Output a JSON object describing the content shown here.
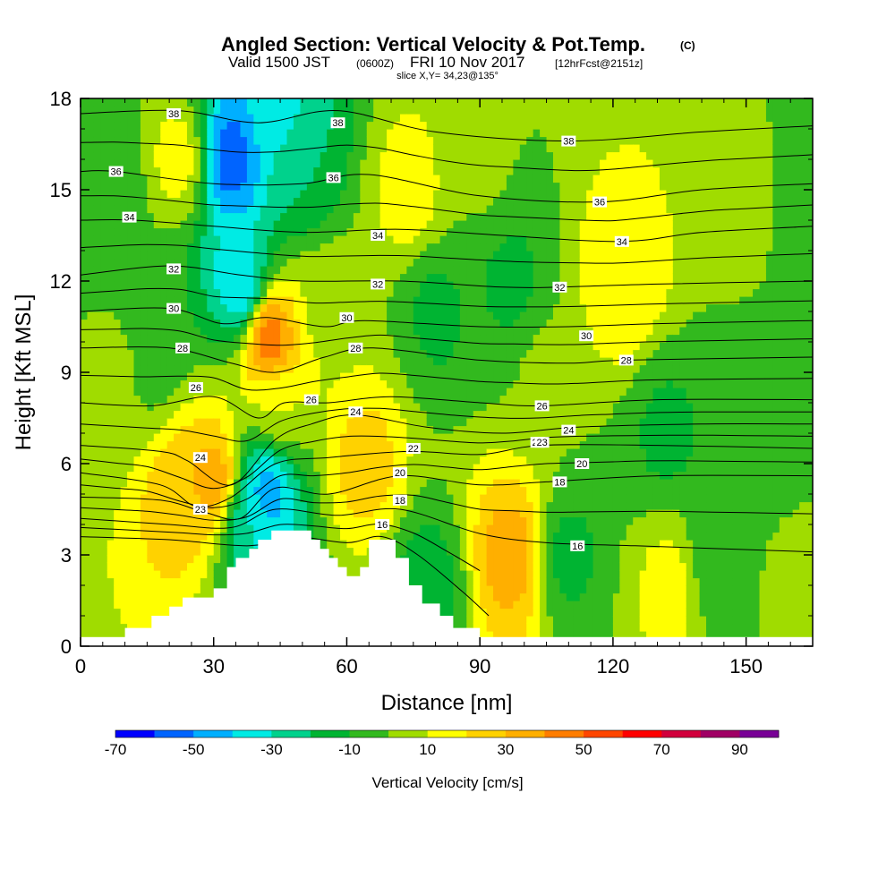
{
  "chart_data": {
    "type": "heatmap",
    "title": "Angled Section: Vertical Velocity & Pot.Temp.",
    "title_unit": "(C)",
    "subtitle_valid": "Valid 1500 JST",
    "subtitle_utc": "(0600Z)",
    "subtitle_date": "FRI 10 Nov 2017",
    "subtitle_fcst": "[12hrFcst@2151z]",
    "slice": "slice X,Y= 34,23@135°",
    "xlabel": "Distance [nm]",
    "ylabel": "Height [Kft MSL]",
    "xlim": [
      0,
      165
    ],
    "ylim": [
      0,
      18
    ],
    "x_ticks": [
      0,
      30,
      60,
      90,
      120,
      150
    ],
    "y_ticks": [
      0,
      3,
      6,
      9,
      12,
      15,
      18
    ],
    "colorbar": {
      "label": "Vertical Velocity [cm/s]",
      "tick_labels": [
        "-70",
        "-50",
        "-30",
        "-10",
        "10",
        "30",
        "50",
        "70",
        "90"
      ],
      "tick_values": [
        -70,
        -50,
        -30,
        -10,
        10,
        30,
        50,
        70,
        90
      ],
      "range": [
        -70,
        100
      ],
      "bin_width": 10,
      "colors": [
        "#0000ff",
        "#0064ff",
        "#00afff",
        "#00ebe4",
        "#00d28c",
        "#00b432",
        "#32b91e",
        "#a0dc00",
        "#ffff00",
        "#ffd200",
        "#ffaf00",
        "#ff7d00",
        "#ff4600",
        "#ff0000",
        "#d2003c",
        "#a00064",
        "#780096"
      ]
    },
    "w_field_centers": [
      {
        "x": 7,
        "z": 15,
        "w": -8
      },
      {
        "x": 8,
        "z": 9,
        "w": 3
      },
      {
        "x": 22,
        "z": 16,
        "w": 14
      },
      {
        "x": 23,
        "z": 5,
        "w": 30
      },
      {
        "x": 30,
        "z": 5.5,
        "w": 35
      },
      {
        "x": 17,
        "z": 10,
        "w": -10
      },
      {
        "x": 34,
        "z": 16,
        "w": -55
      },
      {
        "x": 36,
        "z": 12,
        "w": -38
      },
      {
        "x": 45,
        "z": 17.5,
        "w": -35
      },
      {
        "x": 50,
        "z": 16,
        "w": -20
      },
      {
        "x": 43,
        "z": 10,
        "w": 45
      },
      {
        "x": 42,
        "z": 5,
        "w": -45
      },
      {
        "x": 38,
        "z": 4,
        "w": -30
      },
      {
        "x": 45,
        "z": 8,
        "w": 10
      },
      {
        "x": 64,
        "z": 6,
        "w": 25
      },
      {
        "x": 55,
        "z": 11,
        "w": 8
      },
      {
        "x": 74,
        "z": 15,
        "w": 15
      },
      {
        "x": 80,
        "z": 11,
        "w": -12
      },
      {
        "x": 78,
        "z": 2,
        "w": -15
      },
      {
        "x": 90,
        "z": 16,
        "w": 2
      },
      {
        "x": 97,
        "z": 12,
        "w": -12
      },
      {
        "x": 97,
        "z": 3,
        "w": 35
      },
      {
        "x": 105,
        "z": 9,
        "w": 2
      },
      {
        "x": 110,
        "z": 3,
        "w": -12
      },
      {
        "x": 122,
        "z": 12,
        "w": 20
      },
      {
        "x": 132,
        "z": 7,
        "w": -12
      },
      {
        "x": 133,
        "z": 2,
        "w": 14
      },
      {
        "x": 143,
        "z": 3,
        "w": -10
      },
      {
        "x": 150,
        "z": 15,
        "w": 6
      },
      {
        "x": 155,
        "z": 7,
        "w": -8
      },
      {
        "x": 162,
        "z": 15,
        "w": -8
      },
      {
        "x": 162,
        "z": 2,
        "w": 5
      }
    ],
    "terrain": [
      [
        10,
        0.6
      ],
      [
        16,
        0.6
      ],
      [
        16,
        1.0
      ],
      [
        20,
        1.0
      ],
      [
        20,
        1.3
      ],
      [
        23,
        1.3
      ],
      [
        23,
        1.6
      ],
      [
        30,
        1.6
      ],
      [
        30,
        1.9
      ],
      [
        33,
        1.9
      ],
      [
        33,
        2.6
      ],
      [
        35,
        2.6
      ],
      [
        35,
        2.9
      ],
      [
        38,
        2.9
      ],
      [
        38,
        3.2
      ],
      [
        40,
        3.2
      ],
      [
        40,
        3.5
      ],
      [
        43,
        3.5
      ],
      [
        43,
        3.8
      ],
      [
        52,
        3.8
      ],
      [
        52,
        3.5
      ],
      [
        54,
        3.5
      ],
      [
        54,
        3.2
      ],
      [
        56,
        3.2
      ],
      [
        56,
        2.9
      ],
      [
        58,
        2.9
      ],
      [
        58,
        2.6
      ],
      [
        60,
        2.6
      ],
      [
        60,
        2.3
      ],
      [
        63,
        2.3
      ],
      [
        63,
        2.6
      ],
      [
        65,
        2.6
      ],
      [
        65,
        3.5
      ],
      [
        71,
        3.5
      ],
      [
        71,
        2.9
      ],
      [
        74,
        2.9
      ],
      [
        74,
        2.0
      ],
      [
        77,
        2.0
      ],
      [
        77,
        1.4
      ],
      [
        81,
        1.4
      ],
      [
        81,
        1.0
      ],
      [
        84,
        1.0
      ],
      [
        84,
        0.6
      ],
      [
        90,
        0.6
      ],
      [
        90,
        0.3
      ]
    ],
    "theta_isentropes": [
      {
        "label": "16",
        "points": [
          [
            0,
            3.6
          ],
          [
            20,
            3.5
          ],
          [
            38,
            3.3
          ],
          [
            48,
            3.6
          ],
          [
            60,
            3.4
          ],
          [
            68,
            3.6
          ],
          [
            76,
            3.0
          ],
          [
            86,
            1.8
          ],
          [
            92,
            1.0
          ]
        ],
        "label_at": [
          68,
          4.0
        ]
      },
      {
        "label": "18",
        "points": [
          [
            0,
            4.2
          ],
          [
            20,
            4.0
          ],
          [
            34,
            3.9
          ],
          [
            44,
            4.5
          ],
          [
            58,
            4.3
          ],
          [
            72,
            4.5
          ],
          [
            90,
            3.7
          ],
          [
            105,
            3.4
          ],
          [
            125,
            3.3
          ],
          [
            165,
            3.1
          ]
        ],
        "label_at": [
          72,
          4.8
        ]
      },
      {
        "label": "20",
        "points": [
          [
            0,
            4.9
          ],
          [
            18,
            4.8
          ],
          [
            28,
            4.4
          ],
          [
            36,
            4.2
          ],
          [
            44,
            5.2
          ],
          [
            56,
            5.0
          ],
          [
            72,
            5.6
          ],
          [
            90,
            5.3
          ],
          [
            105,
            5.4
          ],
          [
            130,
            5.6
          ],
          [
            165,
            5.6
          ]
        ],
        "label_at": [
          72,
          5.7
        ]
      },
      {
        "label": "22",
        "points": [
          [
            0,
            5.7
          ],
          [
            18,
            5.3
          ],
          [
            26,
            4.6
          ],
          [
            34,
            4.9
          ],
          [
            44,
            6.0
          ],
          [
            56,
            6.2
          ],
          [
            74,
            6.4
          ],
          [
            90,
            6.3
          ],
          [
            104,
            6.6
          ],
          [
            130,
            6.6
          ],
          [
            165,
            6.5
          ]
        ],
        "label_at": [
          75,
          6.5
        ]
      },
      {
        "label": "24",
        "points": [
          [
            0,
            6.6
          ],
          [
            18,
            6.4
          ],
          [
            24,
            6.1
          ],
          [
            34,
            5.3
          ],
          [
            44,
            6.8
          ],
          [
            52,
            7.3
          ],
          [
            62,
            7.6
          ],
          [
            78,
            7.2
          ],
          [
            95,
            7.0
          ],
          [
            112,
            7.2
          ],
          [
            140,
            7.3
          ],
          [
            165,
            7.3
          ]
        ],
        "label_at": [
          62,
          7.7
        ]
      },
      {
        "label": "26",
        "points": [
          [
            0,
            8.0
          ],
          [
            16,
            7.9
          ],
          [
            30,
            8.2
          ],
          [
            40,
            7.5
          ],
          [
            46,
            8.0
          ],
          [
            56,
            8.0
          ],
          [
            70,
            8.2
          ],
          [
            90,
            8.0
          ],
          [
            104,
            7.9
          ],
          [
            130,
            8.1
          ],
          [
            165,
            8.1
          ]
        ],
        "label_at": [
          104,
          7.9
        ]
      },
      {
        "label": "28",
        "points": [
          [
            0,
            9.8
          ],
          [
            20,
            9.8
          ],
          [
            34,
            9.3
          ],
          [
            44,
            9.0
          ],
          [
            55,
            9.5
          ],
          [
            66,
            9.8
          ],
          [
            90,
            9.4
          ],
          [
            110,
            9.3
          ],
          [
            123,
            9.4
          ],
          [
            165,
            9.5
          ]
        ],
        "label_at": [
          123,
          9.4
        ]
      },
      {
        "label": "30",
        "points": [
          [
            0,
            11.0
          ],
          [
            20,
            11.1
          ],
          [
            32,
            10.6
          ],
          [
            42,
            10.8
          ],
          [
            55,
            10.5
          ],
          [
            64,
            10.7
          ],
          [
            90,
            10.5
          ],
          [
            110,
            10.5
          ],
          [
            130,
            10.6
          ],
          [
            165,
            10.7
          ]
        ],
        "label_at": [
          114,
          10.2
        ]
      },
      {
        "label": "32",
        "points": [
          [
            0,
            12.2
          ],
          [
            20,
            12.5
          ],
          [
            36,
            12.2
          ],
          [
            50,
            12.0
          ],
          [
            72,
            12.0
          ],
          [
            95,
            11.8
          ],
          [
            108,
            11.8
          ],
          [
            130,
            11.9
          ],
          [
            165,
            12.0
          ]
        ],
        "label_at": [
          108,
          11.8
        ]
      },
      {
        "label": "34",
        "points": [
          [
            0,
            14.0
          ],
          [
            12,
            14.0
          ],
          [
            30,
            13.8
          ],
          [
            50,
            13.6
          ],
          [
            72,
            13.7
          ],
          [
            95,
            13.5
          ],
          [
            122,
            13.3
          ],
          [
            140,
            13.6
          ],
          [
            165,
            13.8
          ]
        ],
        "label_at": [
          122,
          13.3
        ]
      },
      {
        "label": "36",
        "points": [
          [
            0,
            15.6
          ],
          [
            8,
            15.6
          ],
          [
            30,
            15.2
          ],
          [
            50,
            15.2
          ],
          [
            65,
            15.5
          ],
          [
            90,
            14.8
          ],
          [
            117,
            14.6
          ],
          [
            140,
            15.0
          ],
          [
            165,
            15.2
          ]
        ],
        "label_at": [
          117,
          14.6
        ]
      },
      {
        "label": "38",
        "points": [
          [
            0,
            17.5
          ],
          [
            22,
            17.6
          ],
          [
            40,
            17.2
          ],
          [
            58,
            17.6
          ],
          [
            80,
            16.9
          ],
          [
            110,
            16.6
          ],
          [
            140,
            16.9
          ],
          [
            165,
            17.1
          ]
        ],
        "label_at": [
          110,
          16.6
        ]
      }
    ],
    "extra_labels": [
      {
        "label": "16",
        "at": [
          112,
          3.3
        ]
      },
      {
        "label": "18",
        "at": [
          108,
          5.4
        ]
      },
      {
        "label": "20",
        "at": [
          113,
          6.0
        ]
      },
      {
        "label": "22",
        "at": [
          103,
          6.7
        ]
      },
      {
        "label": "23",
        "at": [
          104,
          6.7
        ]
      },
      {
        "label": "24",
        "at": [
          110,
          7.1
        ]
      },
      {
        "label": "24",
        "at": [
          27,
          6.2
        ]
      },
      {
        "label": "23",
        "at": [
          27,
          4.5
        ]
      },
      {
        "label": "26",
        "at": [
          26,
          8.5
        ]
      },
      {
        "label": "28",
        "at": [
          23,
          9.8
        ]
      },
      {
        "label": "30",
        "at": [
          21,
          11.1
        ]
      },
      {
        "label": "32",
        "at": [
          21,
          12.4
        ]
      },
      {
        "label": "34",
        "at": [
          11,
          14.1
        ]
      },
      {
        "label": "36",
        "at": [
          8,
          15.6
        ]
      },
      {
        "label": "38",
        "at": [
          21,
          17.5
        ]
      },
      {
        "label": "38",
        "at": [
          58,
          17.2
        ]
      },
      {
        "label": "36",
        "at": [
          57,
          15.4
        ]
      },
      {
        "label": "34",
        "at": [
          67,
          13.5
        ]
      },
      {
        "label": "32",
        "at": [
          67,
          11.9
        ]
      },
      {
        "label": "30",
        "at": [
          60,
          10.8
        ]
      },
      {
        "label": "28",
        "at": [
          62,
          9.8
        ]
      },
      {
        "label": "26",
        "at": [
          52,
          8.1
        ]
      }
    ]
  }
}
